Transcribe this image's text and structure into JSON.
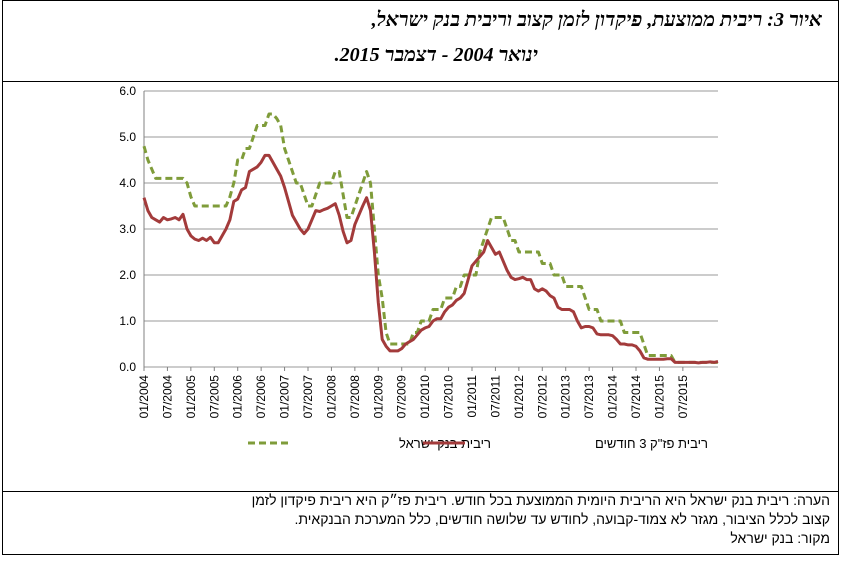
{
  "figure": {
    "title_line1": "איור 3: ריבית ממוצעת, פיקדון לזמן קצוב וריבית בנק ישראל,",
    "title_line2": "ינואר 2004 - דצמבר 2015."
  },
  "notes": {
    "line1": "הערה: ריבית בנק ישראל היא הריבית היומית הממוצעת בכל חודש. ריבית פז״ק היא ריבית פיקדון לזמן",
    "line2": "קצוב לכלל הציבור, מגזר לא צמוד-קבועה, לחודש עד שלושה חודשים, כלל המערכת הבנקאית.",
    "source": "מקור: בנק ישראל"
  },
  "chart_data": {
    "type": "line",
    "title": "",
    "xlabel": "",
    "ylabel": "",
    "ylim": [
      0,
      6
    ],
    "yticks": [
      "0.0",
      "1.0",
      "2.0",
      "3.0",
      "4.0",
      "5.0",
      "6.0"
    ],
    "xticks": [
      "01/2004",
      "07/2004",
      "01/2005",
      "07/2005",
      "01/2006",
      "07/2006",
      "01/2007",
      "07/2007",
      "01/2008",
      "07/2008",
      "01/2009",
      "07/2009",
      "01/2010",
      "07/2010",
      "01/2011",
      "07/2011",
      "01/2012",
      "07/2012",
      "01/2013",
      "07/2013",
      "01/2014",
      "07/2014",
      "01/2015",
      "07/2015"
    ],
    "grid": "horizontal",
    "legend_position": "bottom",
    "colors": {
      "boi": "#7f9c3a",
      "deposit": "#a33b3b",
      "grid": "#9a9a9a"
    },
    "series": [
      {
        "name": "ריבית בנק ישראל",
        "key": "boi",
        "style": "dashed",
        "values": [
          4.8,
          4.5,
          4.3,
          4.1,
          4.1,
          4.1,
          4.1,
          4.1,
          4.1,
          4.1,
          4.1,
          4.0,
          3.7,
          3.5,
          3.5,
          3.5,
          3.5,
          3.5,
          3.5,
          3.5,
          3.5,
          3.5,
          3.7,
          4.0,
          4.5,
          4.5,
          4.75,
          4.75,
          5.0,
          5.25,
          5.25,
          5.25,
          5.5,
          5.5,
          5.4,
          5.25,
          4.75,
          4.5,
          4.25,
          4.0,
          4.0,
          3.75,
          3.5,
          3.5,
          3.75,
          4.0,
          4.0,
          4.0,
          4.0,
          4.25,
          4.25,
          3.75,
          3.25,
          3.25,
          3.5,
          3.75,
          4.0,
          4.25,
          4.0,
          3.0,
          2.0,
          1.5,
          0.75,
          0.5,
          0.5,
          0.5,
          0.5,
          0.5,
          0.5,
          0.75,
          0.75,
          1.0,
          1.0,
          1.0,
          1.25,
          1.25,
          1.25,
          1.5,
          1.5,
          1.5,
          1.75,
          1.75,
          2.0,
          2.0,
          2.0,
          2.0,
          2.5,
          2.75,
          3.0,
          3.25,
          3.25,
          3.25,
          3.25,
          3.0,
          2.75,
          2.75,
          2.5,
          2.5,
          2.5,
          2.5,
          2.5,
          2.5,
          2.25,
          2.25,
          2.25,
          2.0,
          2.0,
          2.0,
          1.75,
          1.75,
          1.75,
          1.75,
          1.75,
          1.5,
          1.25,
          1.25,
          1.25,
          1.0,
          1.0,
          1.0,
          1.0,
          1.0,
          1.0,
          0.75,
          0.75,
          0.75,
          0.75,
          0.75,
          0.5,
          0.25,
          0.25,
          0.25,
          0.25,
          0.25,
          0.25,
          0.25,
          0.1,
          0.1,
          0.1,
          0.1,
          0.1,
          0.1,
          0.1,
          0.1,
          0.1,
          0.1,
          0.1,
          0.1
        ]
      },
      {
        "name": "ריבית פז\"ק 3 חודשים",
        "key": "deposit",
        "style": "solid",
        "values": [
          3.68,
          3.4,
          3.25,
          3.2,
          3.15,
          3.25,
          3.2,
          3.22,
          3.25,
          3.2,
          3.32,
          3.0,
          2.85,
          2.78,
          2.75,
          2.8,
          2.75,
          2.82,
          2.7,
          2.7,
          2.85,
          3.0,
          3.2,
          3.6,
          3.65,
          3.85,
          3.9,
          4.25,
          4.3,
          4.35,
          4.45,
          4.6,
          4.6,
          4.45,
          4.3,
          4.15,
          3.9,
          3.6,
          3.3,
          3.15,
          3.0,
          2.9,
          3.0,
          3.2,
          3.4,
          3.38,
          3.42,
          3.45,
          3.5,
          3.55,
          3.3,
          2.95,
          2.7,
          2.75,
          3.1,
          3.3,
          3.5,
          3.68,
          3.4,
          2.5,
          1.4,
          0.6,
          0.45,
          0.35,
          0.35,
          0.35,
          0.4,
          0.5,
          0.55,
          0.6,
          0.7,
          0.8,
          0.85,
          0.88,
          1.0,
          1.05,
          1.05,
          1.2,
          1.3,
          1.35,
          1.45,
          1.5,
          1.6,
          1.9,
          2.2,
          2.3,
          2.4,
          2.5,
          2.75,
          2.6,
          2.45,
          2.5,
          2.3,
          2.1,
          1.95,
          1.9,
          1.92,
          1.95,
          1.9,
          1.9,
          1.7,
          1.65,
          1.7,
          1.65,
          1.55,
          1.5,
          1.3,
          1.25,
          1.25,
          1.25,
          1.2,
          1.0,
          0.85,
          0.88,
          0.88,
          0.85,
          0.72,
          0.7,
          0.7,
          0.7,
          0.68,
          0.6,
          0.5,
          0.5,
          0.48,
          0.48,
          0.45,
          0.35,
          0.2,
          0.17,
          0.17,
          0.17,
          0.17,
          0.17,
          0.18,
          0.18,
          0.1,
          0.1,
          0.1,
          0.1,
          0.1,
          0.1,
          0.09,
          0.1,
          0.1,
          0.11,
          0.1,
          0.12
        ]
      }
    ]
  }
}
